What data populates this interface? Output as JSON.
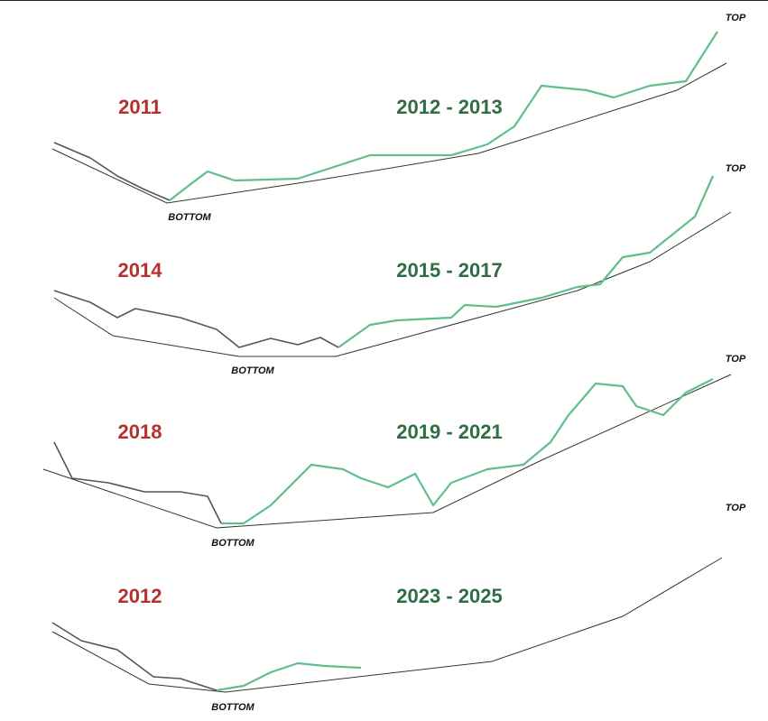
{
  "panels": [
    {
      "bear_label": "2011",
      "bull_label": "2012 - 2013",
      "bottom": "BOTTOM",
      "top": "TOP"
    },
    {
      "bear_label": "2014",
      "bull_label": "2015 - 2017",
      "bottom": "BOTTOM",
      "top": "TOP"
    },
    {
      "bear_label": "2018",
      "bull_label": "2019 - 2021",
      "bottom": "BOTTOM",
      "top": "TOP"
    },
    {
      "bear_label": "2012",
      "bull_label": "2023 - 2025",
      "bottom": "BOTTOM",
      "top": "TOP"
    }
  ]
}
